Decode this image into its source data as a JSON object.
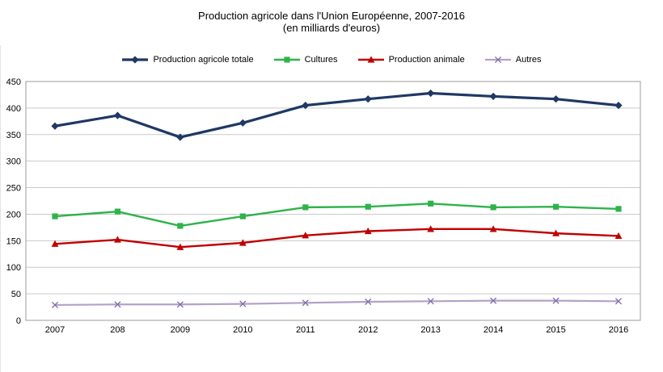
{
  "title": {
    "line1": "Production agricole dans l'Union Européenne, 2007-2016",
    "line2": "(en milliards d'euros)"
  },
  "chart_data": {
    "type": "line",
    "categories": [
      "2007",
      "208",
      "2009",
      "2010",
      "2011",
      "2012",
      "2013",
      "2014",
      "2015",
      "2016"
    ],
    "series": [
      {
        "name": "Production agricole totale",
        "color": "#1f3864",
        "marker": "diamond",
        "marker_color": "#1f3864",
        "line_width": 3.2,
        "values": [
          366,
          386,
          345,
          372,
          405,
          417,
          428,
          422,
          417,
          405
        ]
      },
      {
        "name": "Cultures",
        "color": "#2eb34b",
        "marker": "square",
        "marker_color": "#2eb34b",
        "line_width": 2.4,
        "values": [
          196,
          205,
          178,
          196,
          213,
          214,
          220,
          213,
          214,
          210
        ]
      },
      {
        "name": "Production animale",
        "color": "#c00000",
        "marker": "triangle",
        "marker_color": "#c00000",
        "line_width": 2.4,
        "values": [
          144,
          152,
          138,
          146,
          160,
          168,
          172,
          172,
          164,
          159
        ]
      },
      {
        "name": "Autres",
        "color": "#b3a2c7",
        "marker": "x",
        "marker_color": "#7e6ba8",
        "line_width": 2.2,
        "values": [
          29,
          30,
          30,
          31,
          33,
          35,
          36,
          37,
          37,
          36
        ]
      }
    ],
    "ylim": [
      0,
      450
    ],
    "ytick_step": 50,
    "yticks": [
      0,
      50,
      100,
      150,
      200,
      250,
      300,
      350,
      400,
      450
    ],
    "xlabel": "",
    "ylabel": "",
    "grid": true,
    "grid_color": "#c9c9c9",
    "axis_border_color": "#9b9b9b",
    "legend_position": "top",
    "background": "#ffffff"
  }
}
